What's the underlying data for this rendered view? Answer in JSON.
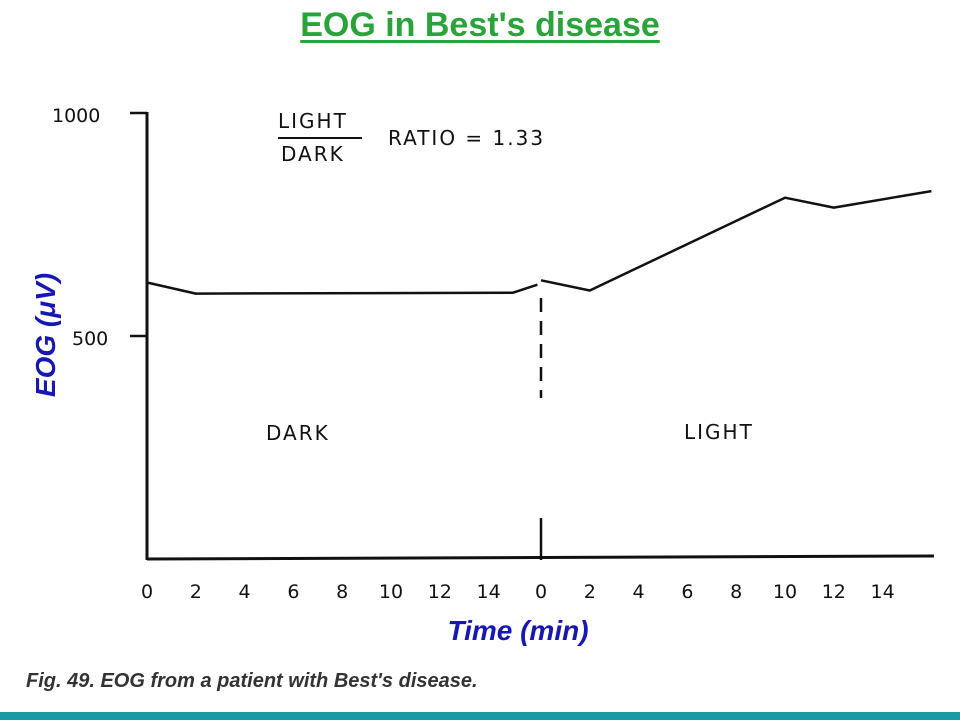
{
  "slide": {
    "title": "EOG in Best's disease",
    "caption": "Fig. 49. EOG from a patient with Best's disease."
  },
  "colors": {
    "title": "#2aa33a",
    "axis_title": "#1717b3",
    "rule": "#1a9aa6"
  },
  "chart_data": {
    "type": "line",
    "title": "",
    "xlabel": "Time (min)",
    "ylabel": "EOG (μV)",
    "ylim": [
      0,
      1000
    ],
    "yticks": [
      "500",
      "1000"
    ],
    "xticks": [
      "0",
      "2",
      "4",
      "6",
      "8",
      "10",
      "12",
      "14",
      "0",
      "2",
      "4",
      "6",
      "8",
      "10",
      "12",
      "14"
    ],
    "phases": [
      "DARK",
      "LIGHT"
    ],
    "annotation": {
      "numerator": "LIGHT",
      "denominator": "DARK",
      "text": "RATIO = 1.33"
    },
    "series": [
      {
        "phase": "DARK",
        "x": [
          0,
          2,
          15,
          16
        ],
        "y": [
          620,
          595,
          597,
          615
        ]
      },
      {
        "phase": "LIGHT",
        "x": [
          0,
          2,
          10,
          12,
          16
        ],
        "y": [
          625,
          602,
          810,
          788,
          825
        ]
      }
    ]
  }
}
